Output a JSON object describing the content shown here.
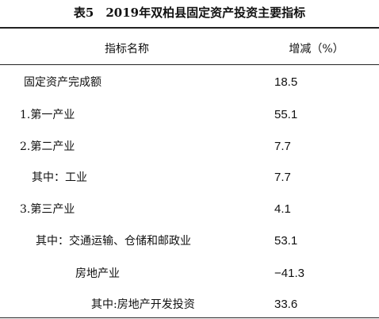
{
  "title": "表5　2019年双柏县固定资产投资主要指标",
  "table": {
    "header": [
      "指标名称",
      "增减（%）"
    ],
    "rows": [
      [
        "固定资产完成额",
        "18.5"
      ],
      [
        "1.第一产业",
        "55.1"
      ],
      [
        "2.第二产业",
        "7.7"
      ],
      [
        "其中：工业",
        "7.7"
      ],
      [
        "3.第三产业",
        "4.1"
      ],
      [
        "其中：交通运输、仓储和邮政业",
        "53.1"
      ],
      [
        "房地产业",
        "−41.3"
      ],
      [
        "其中:房地产开发投资",
        "33.6"
      ]
    ]
  }
}
